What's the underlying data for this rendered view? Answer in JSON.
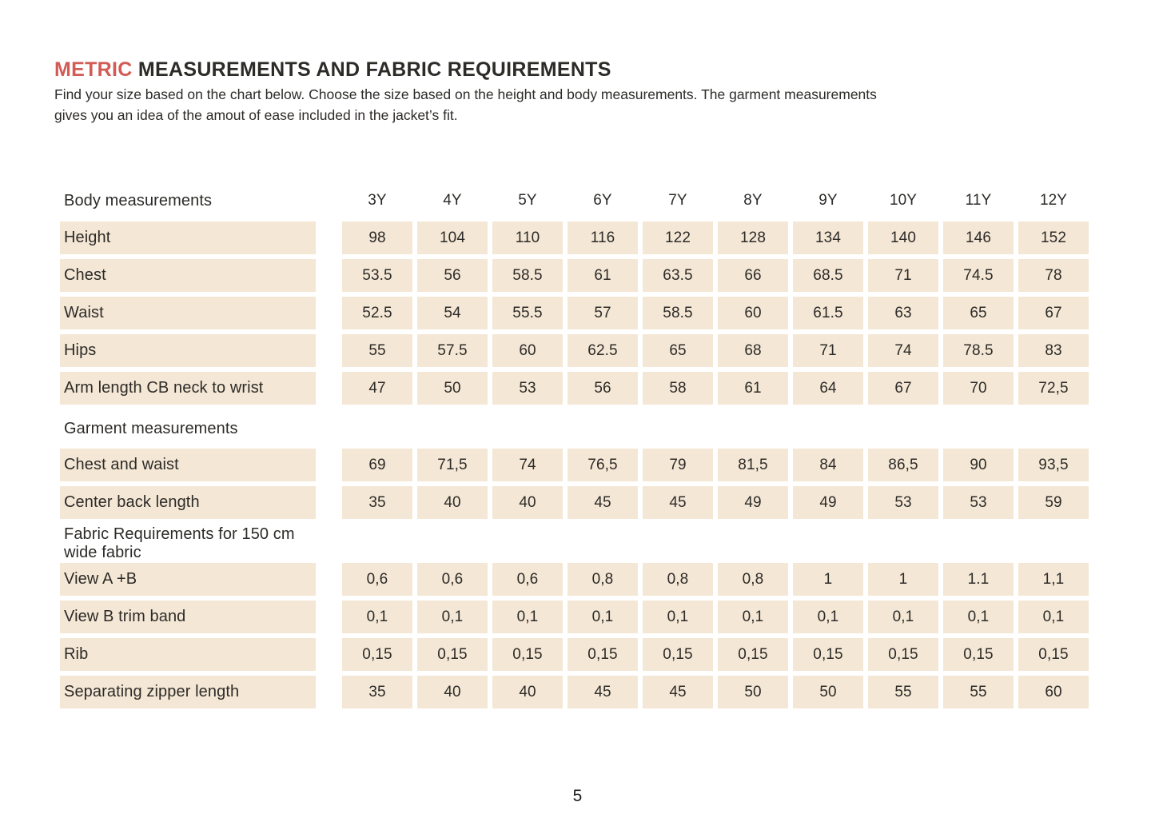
{
  "page": {
    "title_accent": "METRIC",
    "title_rest": "MEASUREMENTS AND FABRIC REQUIREMENTS",
    "intro_line1": "Find your size based on the chart below. Choose the size based on the height and body measurements. The garment measurements",
    "intro_line2": "gives you an idea of the amout of ease included in the jacket’s fit.",
    "page_number": "5"
  },
  "colors": {
    "accent": "#d25b55",
    "row_bg": "#f4e7d5",
    "text": "#2d2b28"
  },
  "table": {
    "header_label": "Body measurements",
    "sizes": [
      "3Y",
      "4Y",
      "5Y",
      "6Y",
      "7Y",
      "8Y",
      "9Y",
      "10Y",
      "11Y",
      "12Y"
    ],
    "sections": [
      {
        "heading": "",
        "rows": [
          {
            "label": "Height",
            "values": [
              "98",
              "104",
              "110",
              "116",
              "122",
              "128",
              "134",
              "140",
              "146",
              "152"
            ]
          },
          {
            "label": "Chest",
            "values": [
              "53.5",
              "56",
              "58.5",
              "61",
              "63.5",
              "66",
              "68.5",
              "71",
              "74.5",
              "78"
            ]
          },
          {
            "label": "Waist",
            "values": [
              "52.5",
              "54",
              "55.5",
              "57",
              "58.5",
              "60",
              "61.5",
              "63",
              "65",
              "67"
            ]
          },
          {
            "label": "Hips",
            "values": [
              "55",
              "57.5",
              "60",
              "62.5",
              "65",
              "68",
              "71",
              "74",
              "78.5",
              "83"
            ]
          },
          {
            "label": "Arm length CB neck to wrist",
            "values": [
              "47",
              "50",
              "53",
              "56",
              "58",
              "61",
              "64",
              "67",
              "70",
              "72,5"
            ]
          }
        ]
      },
      {
        "heading": "Garment measurements",
        "rows": [
          {
            "label": "Chest and waist",
            "values": [
              "69",
              "71,5",
              "74",
              "76,5",
              "79",
              "81,5",
              "84",
              "86,5",
              "90",
              "93,5"
            ]
          },
          {
            "label": "Center back length",
            "values": [
              "35",
              "40",
              "40",
              "45",
              "45",
              "49",
              "49",
              "53",
              "53",
              "59"
            ]
          }
        ]
      },
      {
        "heading": "Fabric Requirements for 150 cm wide fabric",
        "rows": [
          {
            "label": "View A +B",
            "values": [
              "0,6",
              "0,6",
              "0,6",
              "0,8",
              "0,8",
              "0,8",
              "1",
              "1",
              "1.1",
              "1,1"
            ]
          },
          {
            "label": "View B trim band",
            "values": [
              "0,1",
              "0,1",
              "0,1",
              "0,1",
              "0,1",
              "0,1",
              "0,1",
              "0,1",
              "0,1",
              "0,1"
            ]
          },
          {
            "label": "Rib",
            "values": [
              "0,15",
              "0,15",
              "0,15",
              "0,15",
              "0,15",
              "0,15",
              "0,15",
              "0,15",
              "0,15",
              "0,15"
            ]
          },
          {
            "label": "Separating zipper length",
            "values": [
              "35",
              "40",
              "40",
              "45",
              "45",
              "50",
              "50",
              "55",
              "55",
              "60"
            ]
          }
        ]
      }
    ]
  }
}
